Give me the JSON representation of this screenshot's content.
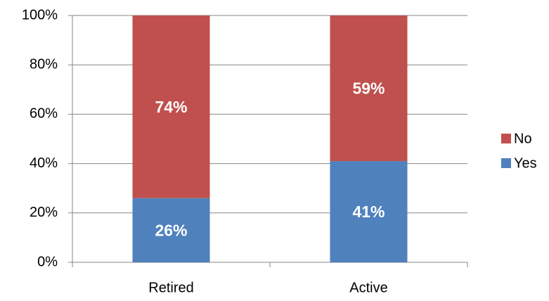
{
  "chart_data": {
    "type": "stacked_bar",
    "categories": [
      "Retired",
      "Active"
    ],
    "series": [
      {
        "name": "Yes",
        "color": "#4f81bd",
        "values": [
          26,
          41
        ],
        "value_labels": [
          "26%",
          "41%"
        ]
      },
      {
        "name": "No",
        "color": "#c0504d",
        "values": [
          74,
          59
        ],
        "value_labels": [
          "74%",
          "59%"
        ]
      }
    ],
    "ylim": [
      0,
      100
    ],
    "yticks": [
      {
        "value": 0,
        "label": "0%"
      },
      {
        "value": 20,
        "label": "20%"
      },
      {
        "value": 40,
        "label": "40%"
      },
      {
        "value": 60,
        "label": "60%"
      },
      {
        "value": 80,
        "label": "80%"
      },
      {
        "value": 100,
        "label": "100%"
      }
    ],
    "grid": true,
    "legend": "right"
  }
}
